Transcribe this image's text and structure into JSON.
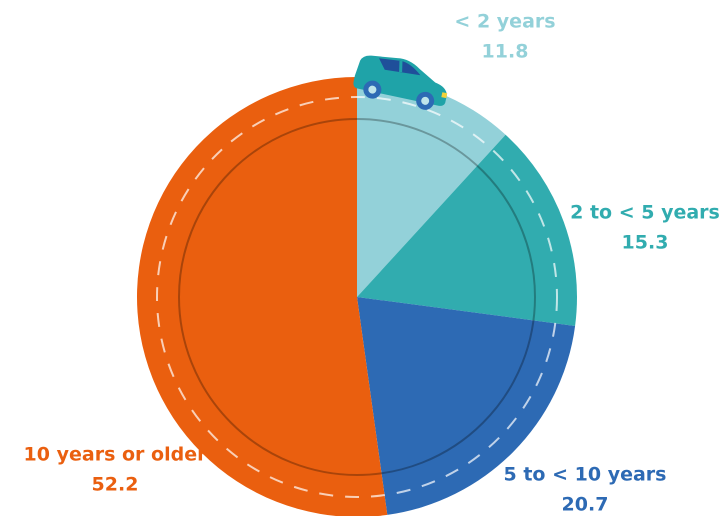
{
  "chart_data": {
    "type": "pie",
    "categories": [
      "< 2 years",
      "2 to < 5 years",
      "5 to < 10 years",
      "10 years or older"
    ],
    "values": [
      11.8,
      15.3,
      20.7,
      52.2
    ],
    "colors": [
      "#93d1d9",
      "#31acaf",
      "#2d6ab4",
      "#ea5f0f"
    ],
    "label_colors": [
      "#93d1d9",
      "#31acaf",
      "#2d6ab4",
      "#ea5f0f"
    ]
  }
}
